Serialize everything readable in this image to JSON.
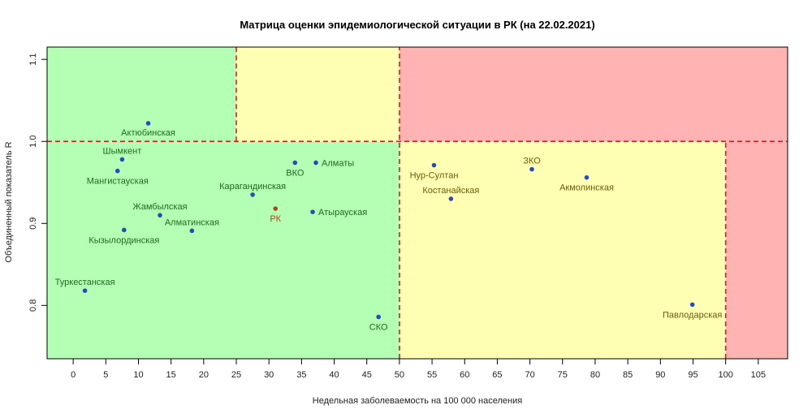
{
  "chart_data": {
    "type": "scatter",
    "title": "Матрица оценки эпидемиологической ситуации в РК (на 22.02.2021)",
    "xlabel": "Недельная заболеваемость на 100 000 населения",
    "ylabel": "Объединенный показатель R",
    "xlim": [
      -4,
      109.5
    ],
    "ylim": [
      0.735,
      1.115
    ],
    "x_ticks": [
      0,
      5,
      10,
      15,
      20,
      25,
      30,
      35,
      40,
      45,
      50,
      55,
      60,
      65,
      70,
      75,
      80,
      85,
      90,
      95,
      100,
      105
    ],
    "y_ticks": [
      0.8,
      0.9,
      1.0,
      1.1
    ],
    "y_tick_labels": [
      "0.8",
      "0.9",
      "1.0",
      "1.1"
    ],
    "zones": [
      {
        "name": "green-zone",
        "x": [
          -4,
          50
        ],
        "y": [
          0.735,
          1.0
        ],
        "color": "#b3ffb3"
      },
      {
        "name": "green-zone-upper",
        "x": [
          -4,
          25
        ],
        "y": [
          1.0,
          1.115
        ],
        "color": "#b3ffb3"
      },
      {
        "name": "yellow-zone-upper",
        "x": [
          25,
          50
        ],
        "y": [
          1.0,
          1.115
        ],
        "color": "#ffffb3"
      },
      {
        "name": "yellow-zone-lower",
        "x": [
          50,
          100
        ],
        "y": [
          0.735,
          1.0
        ],
        "color": "#ffffb3"
      },
      {
        "name": "red-zone-upper",
        "x": [
          50,
          109.5
        ],
        "y": [
          1.0,
          1.115
        ],
        "color": "#ffb3b3"
      },
      {
        "name": "red-zone-lower",
        "x": [
          100,
          109.5
        ],
        "y": [
          0.735,
          1.0
        ],
        "color": "#ffb3b3"
      }
    ],
    "threshold_lines": [
      {
        "name": "threshold-x25",
        "x": [
          25,
          25
        ],
        "y": [
          1.0,
          1.115
        ]
      },
      {
        "name": "threshold-x50",
        "x": [
          50,
          50
        ],
        "y": [
          0.735,
          1.115
        ]
      },
      {
        "name": "threshold-x100",
        "x": [
          100,
          100
        ],
        "y": [
          0.735,
          1.0
        ]
      },
      {
        "name": "threshold-y1",
        "x": [
          -4,
          109.5
        ],
        "y": [
          1.0,
          1.0
        ]
      }
    ],
    "points": [
      {
        "label": "Актюбинская",
        "x": 11.5,
        "y": 1.022,
        "color": "#2a4ab5",
        "label_color": "#1f6a1f",
        "anchor": "middle",
        "dx": 0,
        "dy": 15
      },
      {
        "label": "Шымкент",
        "x": 7.5,
        "y": 0.978,
        "color": "#2a4ab5",
        "label_color": "#1f6a1f",
        "anchor": "middle",
        "dx": 0,
        "dy": -7
      },
      {
        "label": "Мангистауская",
        "x": 6.8,
        "y": 0.964,
        "color": "#2a4ab5",
        "label_color": "#1f6a1f",
        "anchor": "middle",
        "dx": 0,
        "dy": 16
      },
      {
        "label": "Жамбылская",
        "x": 13.3,
        "y": 0.91,
        "color": "#2a4ab5",
        "label_color": "#1f6a1f",
        "anchor": "middle",
        "dx": 0,
        "dy": -7
      },
      {
        "label": "Алматинская",
        "x": 18.2,
        "y": 0.891,
        "color": "#2a4ab5",
        "label_color": "#1f6a1f",
        "anchor": "middle",
        "dx": 0,
        "dy": -7
      },
      {
        "label": "Кызылординская",
        "x": 7.8,
        "y": 0.892,
        "color": "#2a4ab5",
        "label_color": "#1f6a1f",
        "anchor": "middle",
        "dx": 0,
        "dy": 16
      },
      {
        "label": "Туркестанская",
        "x": 1.8,
        "y": 0.818,
        "color": "#2a4ab5",
        "label_color": "#1f6a1f",
        "anchor": "middle",
        "dx": 0,
        "dy": -7
      },
      {
        "label": "Карагандинская",
        "x": 27.5,
        "y": 0.935,
        "color": "#2a4ab5",
        "label_color": "#1f6a1f",
        "anchor": "middle",
        "dx": 0,
        "dy": -7
      },
      {
        "label": "РК",
        "x": 31,
        "y": 0.918,
        "color": "#b8401a",
        "label_color": "#b8401a",
        "anchor": "middle",
        "dx": 0,
        "dy": 16
      },
      {
        "label": "ВКО",
        "x": 34,
        "y": 0.974,
        "color": "#2a4ab5",
        "label_color": "#1f6a1f",
        "anchor": "middle",
        "dx": 0,
        "dy": 16
      },
      {
        "label": "Алматы",
        "x": 37.2,
        "y": 0.974,
        "color": "#2a4ab5",
        "label_color": "#1f6a1f",
        "anchor": "start",
        "dx": 7,
        "dy": 4
      },
      {
        "label": "Атырауская",
        "x": 36.7,
        "y": 0.914,
        "color": "#2a4ab5",
        "label_color": "#1f6a1f",
        "anchor": "start",
        "dx": 7,
        "dy": 4
      },
      {
        "label": "СКО",
        "x": 46.8,
        "y": 0.786,
        "color": "#2a4ab5",
        "label_color": "#1f6a1f",
        "anchor": "middle",
        "dx": 0,
        "dy": 16
      },
      {
        "label": "Нур-Султан",
        "x": 55.3,
        "y": 0.971,
        "color": "#2a4ab5",
        "label_color": "#6b5a0a",
        "anchor": "middle",
        "dx": 0,
        "dy": 16
      },
      {
        "label": "Костанайская",
        "x": 57.9,
        "y": 0.93,
        "color": "#2a4ab5",
        "label_color": "#6b5a0a",
        "anchor": "middle",
        "dx": 0,
        "dy": -7
      },
      {
        "label": "ЗКО",
        "x": 70.3,
        "y": 0.966,
        "color": "#2a4ab5",
        "label_color": "#6b5a0a",
        "anchor": "middle",
        "dx": 0,
        "dy": -7
      },
      {
        "label": "Акмолинская",
        "x": 78.7,
        "y": 0.956,
        "color": "#2a4ab5",
        "label_color": "#6b5a0a",
        "anchor": "middle",
        "dx": 0,
        "dy": 16
      },
      {
        "label": "Павлодарская",
        "x": 94.9,
        "y": 0.801,
        "color": "#2a4ab5",
        "label_color": "#6b5a0a",
        "anchor": "middle",
        "dx": 0,
        "dy": 16
      }
    ]
  }
}
